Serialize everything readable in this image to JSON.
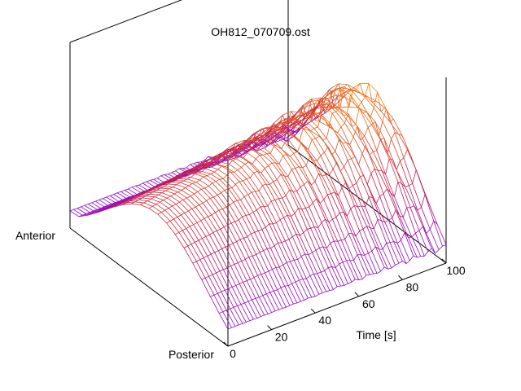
{
  "chart_data": {
    "type": "surface",
    "title": "OH812_070709.ost",
    "xlabel": "Time [s]",
    "y_axis_end_labels": [
      "Anterior",
      "Posterior"
    ],
    "zlabel": "",
    "xlim": [
      0,
      100
    ],
    "x_ticks": [
      0,
      20,
      40,
      60,
      80,
      100
    ],
    "x_tick_labels": [
      "0",
      "20",
      "40",
      "60",
      "80",
      "100"
    ],
    "ylim": [
      0,
      1
    ],
    "zlim": [
      0,
      1
    ],
    "grid": false,
    "legend": "none",
    "colormap": [
      "#7a00ff",
      "#c81e46",
      "#ff9b00"
    ],
    "time_samples": 60,
    "position_samples": 18,
    "surface_model": {
      "description": "mesh height vs time (x) and anterior-posterior position (y); arched profile across position, growing ripples over time",
      "base_level": 0.15,
      "arch_height": 0.55,
      "arch_growth_with_time": 0.35,
      "ripple_amplitude_max": 0.1
    }
  }
}
